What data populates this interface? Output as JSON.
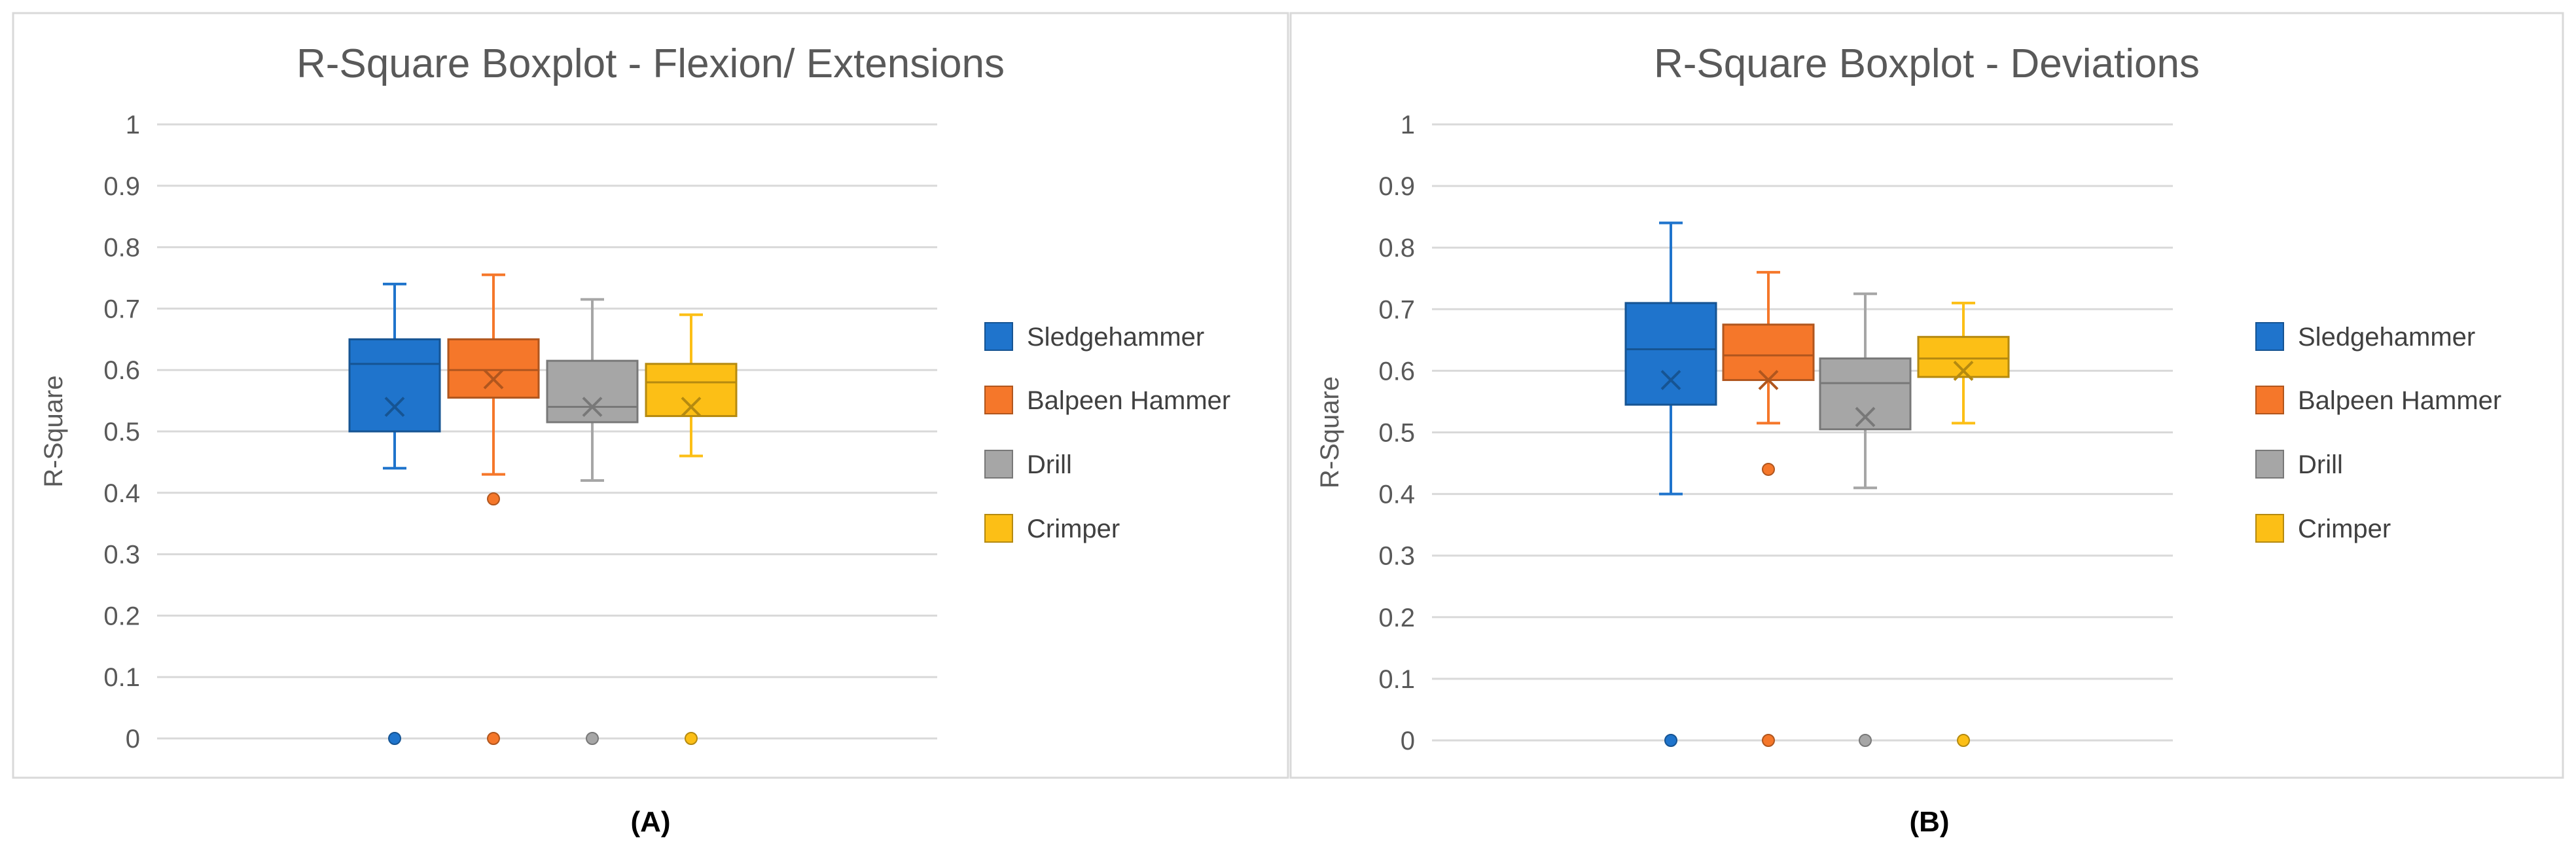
{
  "colors": {
    "Sledgehammer": "#1f74cc",
    "Balpeen Hammer": "#f5772a",
    "Drill": "#a6a6a6",
    "Crimper": "#fcbf16"
  },
  "chart_data": [
    {
      "type": "boxplot",
      "title": "R-Square Boxplot - Flexion/ Extensions",
      "ylabel": "R-Square",
      "ylim": [
        0,
        1
      ],
      "yticks": [
        "0",
        "0.1",
        "0.2",
        "0.3",
        "0.4",
        "0.5",
        "0.6",
        "0.7",
        "0.8",
        "0.9",
        "1"
      ],
      "grid": true,
      "legend": "right",
      "caption": "(A)",
      "series": [
        {
          "name": "Sledgehammer",
          "whisker_low": 0.44,
          "q1": 0.5,
          "median": 0.61,
          "q3": 0.65,
          "whisker_high": 0.74,
          "mean": 0.54,
          "outliers": [
            0.0
          ]
        },
        {
          "name": "Balpeen Hammer",
          "whisker_low": 0.43,
          "q1": 0.555,
          "median": 0.6,
          "q3": 0.65,
          "whisker_high": 0.755,
          "mean": 0.585,
          "outliers": [
            0.39,
            0.0
          ]
        },
        {
          "name": "Drill",
          "whisker_low": 0.42,
          "q1": 0.515,
          "median": 0.54,
          "q3": 0.615,
          "whisker_high": 0.715,
          "mean": 0.54,
          "outliers": [
            0.0
          ]
        },
        {
          "name": "Crimper",
          "whisker_low": 0.46,
          "q1": 0.525,
          "median": 0.58,
          "q3": 0.61,
          "whisker_high": 0.69,
          "mean": 0.54,
          "outliers": [
            0.0
          ]
        }
      ]
    },
    {
      "type": "boxplot",
      "title": "R-Square Boxplot - Deviations",
      "ylabel": "R-Square",
      "ylim": [
        0,
        1
      ],
      "yticks": [
        "0",
        "0.1",
        "0.2",
        "0.3",
        "0.4",
        "0.5",
        "0.6",
        "0.7",
        "0.8",
        "0.9",
        "1"
      ],
      "grid": true,
      "legend": "right",
      "caption": "(B)",
      "series": [
        {
          "name": "Sledgehammer",
          "whisker_low": 0.4,
          "q1": 0.545,
          "median": 0.635,
          "q3": 0.71,
          "whisker_high": 0.84,
          "mean": 0.585,
          "outliers": [
            0.0
          ]
        },
        {
          "name": "Balpeen Hammer",
          "whisker_low": 0.515,
          "q1": 0.585,
          "median": 0.625,
          "q3": 0.675,
          "whisker_high": 0.76,
          "mean": 0.585,
          "outliers": [
            0.44,
            0.0
          ]
        },
        {
          "name": "Drill",
          "whisker_low": 0.41,
          "q1": 0.505,
          "median": 0.58,
          "q3": 0.62,
          "whisker_high": 0.725,
          "mean": 0.525,
          "outliers": [
            0.0
          ]
        },
        {
          "name": "Crimper",
          "whisker_low": 0.515,
          "q1": 0.59,
          "median": 0.62,
          "q3": 0.655,
          "whisker_high": 0.71,
          "mean": 0.6,
          "outliers": [
            0.0
          ]
        }
      ]
    }
  ]
}
